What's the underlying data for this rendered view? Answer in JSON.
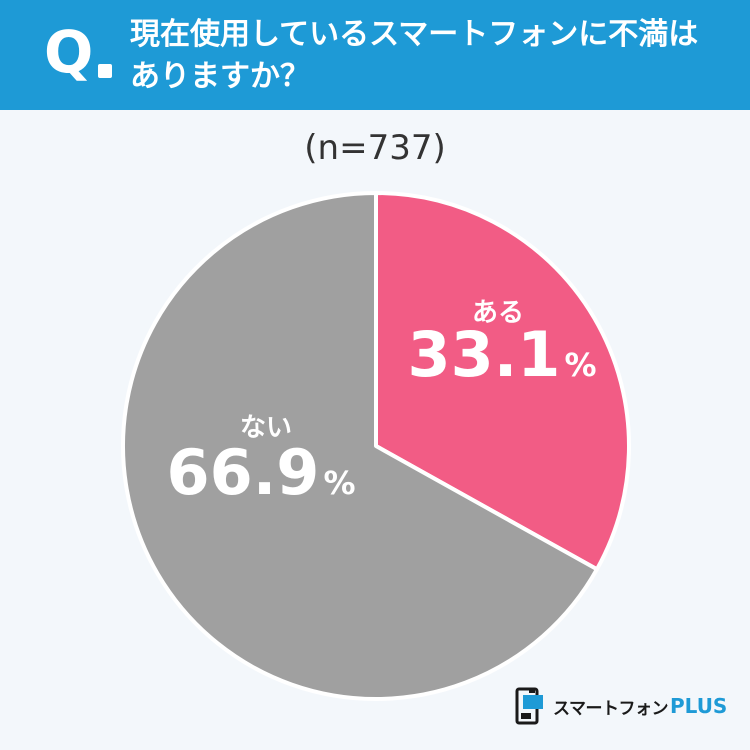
{
  "header": {
    "q_mark": "Q",
    "question": "現在使用しているスマートフォンに不満は\nありますか？"
  },
  "sample_size": "(n=737)",
  "chart_data": {
    "type": "pie",
    "slices": [
      {
        "label": "ある",
        "value": 33.1,
        "value_text": "33.1",
        "unit": "%",
        "color": "#f25c85"
      },
      {
        "label": "ない",
        "value": 66.9,
        "value_text": "66.9",
        "unit": "%",
        "color": "#a0a0a0"
      }
    ],
    "start": "12 o'clock",
    "direction": "clockwise"
  },
  "logo": {
    "text": "スマートフォン",
    "plus": "PLUS",
    "icon": "smartphone-plus-logo-icon"
  }
}
